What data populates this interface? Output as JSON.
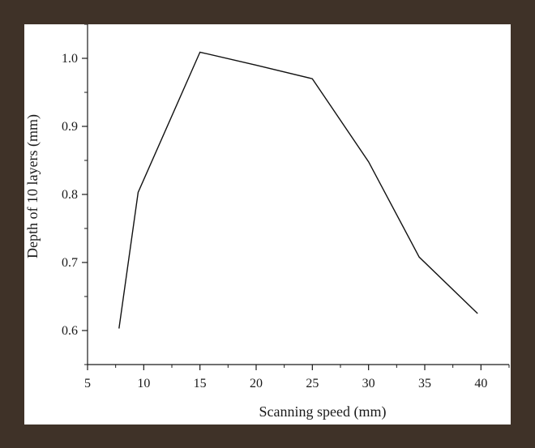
{
  "chart_data": {
    "type": "line",
    "title": "",
    "xlabel": "Scanning speed (mm)",
    "ylabel": "Depth of 10 layers (mm)",
    "xlim": [
      5,
      42.5
    ],
    "ylim": [
      0.55,
      1.05
    ],
    "xticks": [
      5,
      10,
      15,
      20,
      25,
      30,
      35,
      40
    ],
    "yticks": [
      0.6,
      0.7,
      0.8,
      0.9,
      1.0
    ],
    "xtick_labels": [
      "5",
      "10",
      "15",
      "20",
      "25",
      "30",
      "35",
      "40"
    ],
    "ytick_labels": [
      "0.6",
      "0.7",
      "0.8",
      "0.9",
      "1.0"
    ],
    "grid": false,
    "series": [
      {
        "x": [
          7.8,
          9.5,
          15,
          20,
          25,
          30,
          34.5,
          39.7
        ],
        "y": [
          0.603,
          0.803,
          1.009,
          0.99,
          0.97,
          0.848,
          0.708,
          0.625
        ]
      }
    ],
    "colors": {
      "line": "#111111",
      "axis": "#1a1a1a"
    }
  }
}
